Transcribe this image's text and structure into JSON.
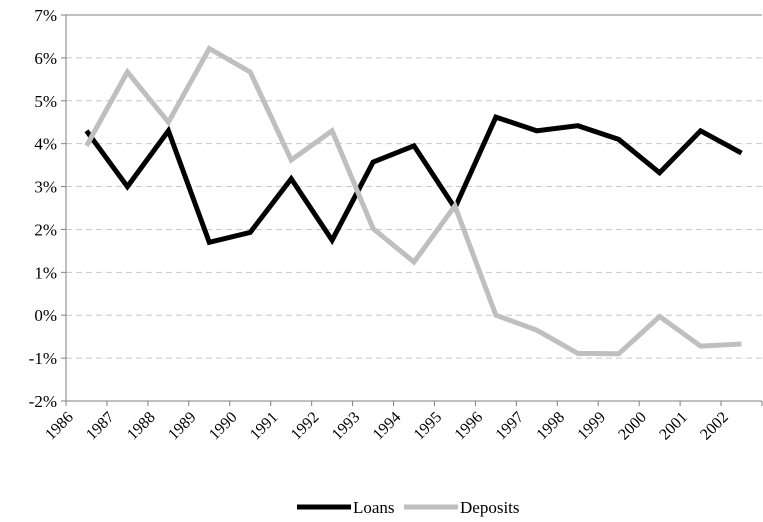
{
  "chart_data": {
    "type": "line",
    "categories": [
      "1986",
      "1987",
      "1988",
      "1989",
      "1990",
      "1991",
      "1992",
      "1993",
      "1994",
      "1995",
      "1996",
      "1997",
      "1998",
      "1999",
      "2000",
      "2001",
      "2002"
    ],
    "ylim": [
      -2,
      7
    ],
    "yticks": [
      -2,
      -1,
      0,
      1,
      2,
      3,
      4,
      5,
      6,
      7
    ],
    "ytick_labels": [
      "-2%",
      "-1%",
      "0%",
      "1%",
      "2%",
      "3%",
      "4%",
      "5%",
      "6%",
      "7%"
    ],
    "grid": "horizontal dashed",
    "legend_position": "bottom",
    "series": [
      {
        "name": "Loans",
        "color": "#000000",
        "values": [
          4.3,
          3.0,
          4.3,
          1.7,
          1.93,
          3.18,
          1.75,
          3.57,
          3.95,
          2.5,
          4.62,
          4.3,
          4.42,
          4.1,
          3.32,
          4.3,
          3.78
        ]
      },
      {
        "name": "Deposits",
        "color": "#bfbfbf",
        "values": [
          3.95,
          5.67,
          4.5,
          6.22,
          5.67,
          3.62,
          4.3,
          2.02,
          1.24,
          2.55,
          0.0,
          -0.35,
          -0.89,
          -0.9,
          -0.03,
          -0.72,
          -0.67
        ]
      }
    ]
  }
}
